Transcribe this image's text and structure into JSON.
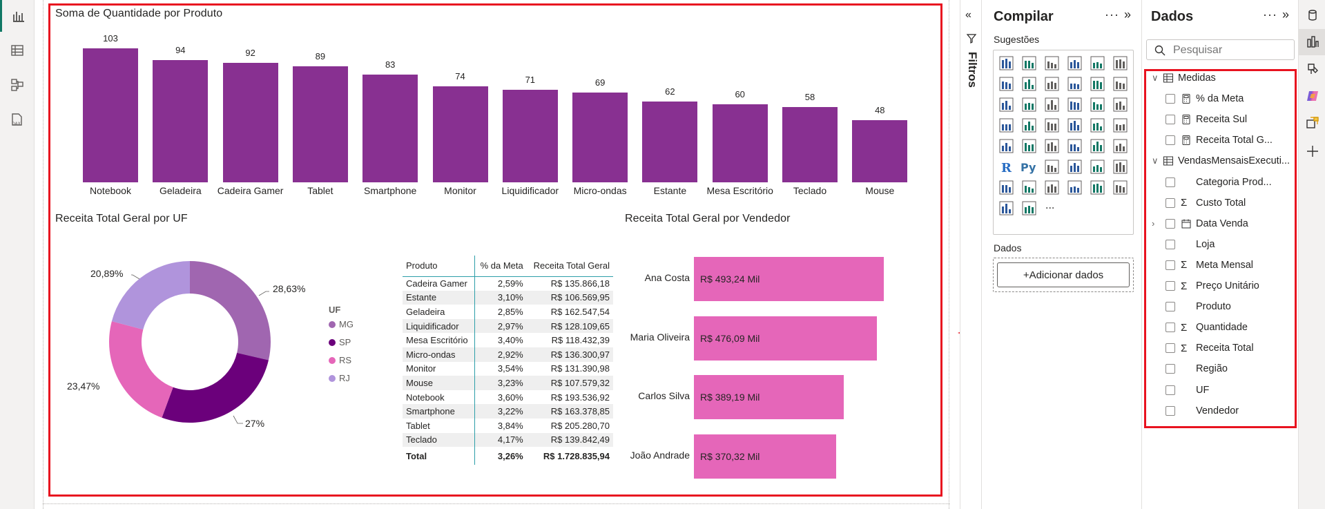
{
  "canvas": {
    "bar_chart": {
      "title": "Soma de Quantidade por Produto",
      "bar_color": "#883091"
    },
    "pie_chart": {
      "title": "Receita Total Geral por UF",
      "legend_title": "UF",
      "legend": [
        "MG",
        "SP",
        "RS",
        "RJ"
      ],
      "labels": [
        "28,63%",
        "27%",
        "23,47%",
        "20,89%"
      ]
    },
    "table": {
      "headers": [
        "Produto",
        "% da Meta",
        "Receita Total Geral"
      ],
      "rows": [
        [
          "Cadeira Gamer",
          "2,59%",
          "R$ 135.866,18"
        ],
        [
          "Estante",
          "3,10%",
          "R$ 106.569,95"
        ],
        [
          "Geladeira",
          "2,85%",
          "R$ 162.547,54"
        ],
        [
          "Liquidificador",
          "2,97%",
          "R$ 128.109,65"
        ],
        [
          "Mesa Escritório",
          "3,40%",
          "R$ 118.432,39"
        ],
        [
          "Micro-ondas",
          "2,92%",
          "R$ 136.300,97"
        ],
        [
          "Monitor",
          "3,54%",
          "R$ 131.390,98"
        ],
        [
          "Mouse",
          "3,23%",
          "R$ 107.579,32"
        ],
        [
          "Notebook",
          "3,60%",
          "R$ 193.536,92"
        ],
        [
          "Smartphone",
          "3,22%",
          "R$ 163.378,85"
        ],
        [
          "Tablet",
          "3,84%",
          "R$ 205.280,70"
        ],
        [
          "Teclado",
          "4,17%",
          "R$ 139.842,49"
        ]
      ],
      "total": [
        "Total",
        "3,26%",
        "R$ 1.728.835,94"
      ]
    },
    "hbar_chart": {
      "title": "Receita Total Geral por Vendedor",
      "bar_color": "#e566b9"
    }
  },
  "chart_data": [
    {
      "type": "bar",
      "title": "Soma de Quantidade por Produto",
      "categories": [
        "Notebook",
        "Geladeira",
        "Cadeira Gamer",
        "Tablet",
        "Smartphone",
        "Monitor",
        "Liquidificador",
        "Micro-ondas",
        "Estante",
        "Mesa Escritório",
        "Teclado",
        "Mouse"
      ],
      "values": [
        103,
        94,
        92,
        89,
        83,
        74,
        71,
        69,
        62,
        60,
        58,
        48
      ],
      "ylim": [
        0,
        103
      ]
    },
    {
      "type": "pie",
      "title": "Receita Total Geral por UF",
      "categories": [
        "MG",
        "SP",
        "RS",
        "RJ"
      ],
      "values": [
        28.63,
        27.0,
        23.47,
        20.89
      ],
      "colors": [
        "#a066b0",
        "#6b007b",
        "#e566b9",
        "#b094dc"
      ],
      "legend": "right"
    },
    {
      "type": "bar",
      "orientation": "horizontal",
      "title": "Receita Total Geral por Vendedor",
      "categories": [
        "Ana Costa",
        "Maria Oliveira",
        "Carlos Silva",
        "João Andrade"
      ],
      "values": [
        493.24,
        476.09,
        389.19,
        370.32
      ],
      "labels": [
        "R$ 493,24 Mil",
        "R$ 476,09 Mil",
        "R$ 389,19 Mil",
        "R$ 370,32 Mil"
      ],
      "xlim": [
        0,
        493.24
      ]
    }
  ],
  "filters": {
    "label": "Filtros"
  },
  "build_pane": {
    "title": "Compilar",
    "suggestions_label": "Sugestões",
    "data_label": "Dados",
    "add_data_label": "+Adicionar dados"
  },
  "data_pane": {
    "title": "Dados",
    "search_placeholder": "Pesquisar",
    "fields": [
      {
        "label": "Medidas",
        "kind": "table",
        "indent": 0,
        "expanded": true
      },
      {
        "label": "% da Meta",
        "kind": "measure",
        "indent": 1
      },
      {
        "label": "Receita Sul",
        "kind": "measure",
        "indent": 1
      },
      {
        "label": "Receita Total G...",
        "kind": "measure",
        "indent": 1
      },
      {
        "label": "VendasMensaisExecuti...",
        "kind": "table",
        "indent": 0,
        "expanded": true
      },
      {
        "label": "Categoria Prod...",
        "kind": "field",
        "indent": 1
      },
      {
        "label": "Custo Total",
        "kind": "sum",
        "indent": 1
      },
      {
        "label": "Data Venda",
        "kind": "date",
        "indent": 1
      },
      {
        "label": "Loja",
        "kind": "field",
        "indent": 1
      },
      {
        "label": "Meta Mensal",
        "kind": "sum",
        "indent": 1
      },
      {
        "label": "Preço Unitário",
        "kind": "sum",
        "indent": 1
      },
      {
        "label": "Produto",
        "kind": "field",
        "indent": 1
      },
      {
        "label": "Quantidade",
        "kind": "sum",
        "indent": 1
      },
      {
        "label": "Receita Total",
        "kind": "sum",
        "indent": 1
      },
      {
        "label": "Região",
        "kind": "field",
        "indent": 1
      },
      {
        "label": "UF",
        "kind": "field",
        "indent": 1
      },
      {
        "label": "Vendedor",
        "kind": "field",
        "indent": 1
      }
    ]
  },
  "colors": {
    "accent": "#117865",
    "highlight_red": "#e8121f",
    "table_rule": "#2b9ea8"
  }
}
